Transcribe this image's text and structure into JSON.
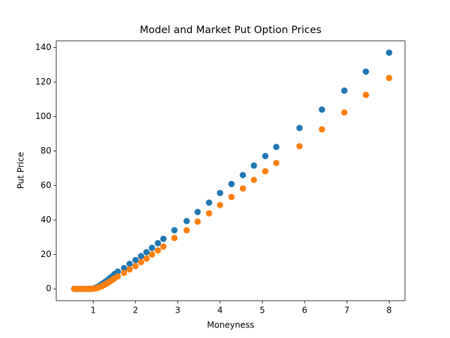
{
  "chart_data": {
    "type": "scatter",
    "title": "Model and Market Put Option Prices",
    "x_label": "Moneyness",
    "y_label": "Put Price",
    "x": [
      0.55,
      0.6,
      0.65,
      0.7,
      0.75,
      0.8,
      0.85,
      0.9,
      0.95,
      1.0,
      1.05,
      1.1,
      1.15,
      1.2,
      1.25,
      1.3,
      1.35,
      1.4,
      1.45,
      1.5,
      1.58,
      1.73,
      1.86,
      2.0,
      2.13,
      2.26,
      2.39,
      2.53,
      2.66,
      2.92,
      3.21,
      3.47,
      3.74,
      4.0,
      4.27,
      4.54,
      4.8,
      5.07,
      5.33,
      5.88,
      6.41,
      6.94,
      7.45,
      8.0
    ],
    "series": [
      {
        "color": "#1f77b4",
        "values": [
          0,
          0,
          0,
          0,
          0,
          0,
          0,
          0,
          0.05,
          0.2,
          0.6,
          1.1,
          1.8,
          2.7,
          3.5,
          4.4,
          5.3,
          6.3,
          7.3,
          8.5,
          10,
          12,
          14.5,
          16.7,
          19,
          21.3,
          23.8,
          26.5,
          29,
          34,
          39.3,
          44.6,
          50,
          55.6,
          60.8,
          66,
          71.5,
          77,
          82.3,
          93.3,
          104,
          115,
          126,
          137
        ]
      },
      {
        "color": "#ff7f0e",
        "values": [
          0,
          0,
          0,
          0,
          0,
          0,
          0,
          0,
          0,
          0.1,
          0.3,
          0.6,
          1,
          1.5,
          2.2,
          2.9,
          3.6,
          4.4,
          5.2,
          6,
          7.2,
          9.3,
          11.3,
          13.2,
          15.5,
          17.6,
          20,
          22.3,
          24.5,
          29.5,
          34,
          39,
          43.8,
          48.6,
          53.3,
          58.2,
          63.2,
          68.2,
          73,
          82.7,
          92.5,
          102.3,
          112.5,
          122.3
        ]
      }
    ],
    "xlim": [
      0.125,
      8.375
    ],
    "xticks": [
      1,
      2,
      3,
      4,
      5,
      6,
      7,
      8
    ],
    "ylim": [
      -6.85,
      143.85
    ],
    "yticks": [
      0,
      20,
      40,
      60,
      80,
      100,
      120,
      140
    ]
  }
}
